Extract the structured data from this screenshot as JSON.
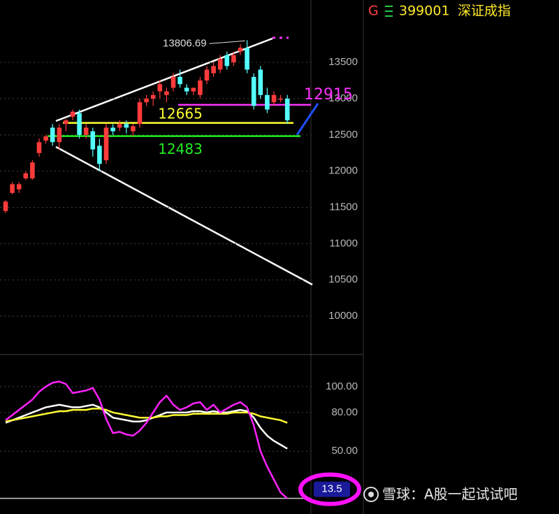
{
  "header": {
    "marker": "G",
    "code": "399001",
    "name": "深证成指"
  },
  "watermark": "雪球：A股一起试试吧",
  "chart_data": [
    {
      "type": "candlestick",
      "up_color": "#ff3b3b",
      "down_color": "#54ffff",
      "ylim": [
        9490,
        14360
      ],
      "yticks": [
        10000,
        10500,
        11000,
        11500,
        12000,
        12500,
        13000,
        13500
      ],
      "grid": true,
      "open": [
        11450,
        11700,
        11750,
        11900,
        11900,
        12250,
        12420,
        12600,
        12400,
        12650,
        12750,
        12800,
        12500,
        12550,
        12350,
        12150,
        12600,
        12600,
        12650,
        12550,
        12650,
        12950,
        13000,
        13100,
        13050,
        13150,
        13300,
        13150,
        13100,
        13050,
        13250,
        13350,
        13400,
        13600,
        13500,
        13650,
        13700,
        13300,
        13400,
        13050,
        12950,
        13000,
        13000
      ],
      "high": [
        11600,
        11850,
        11850,
        12000,
        12150,
        12450,
        12500,
        12650,
        12650,
        12720,
        12850,
        12850,
        12650,
        12600,
        12450,
        12650,
        12650,
        12700,
        12700,
        12650,
        13000,
        13050,
        13100,
        13250,
        13150,
        13350,
        13400,
        13200,
        13150,
        13300,
        13450,
        13500,
        13600,
        13650,
        13650,
        13750,
        13806.69,
        13350,
        13450,
        13150,
        13100,
        13050,
        13050
      ],
      "low": [
        11420,
        11680,
        11700,
        11880,
        11880,
        12200,
        12380,
        12350,
        12300,
        12550,
        12700,
        12450,
        12450,
        12200,
        12000,
        12100,
        12500,
        12550,
        12520,
        12480,
        12600,
        12900,
        12900,
        13000,
        12950,
        13100,
        13150,
        13050,
        13050,
        13000,
        13200,
        13300,
        13350,
        13400,
        13450,
        13600,
        13350,
        12850,
        13000,
        12800,
        12900,
        12950,
        12650
      ],
      "close": [
        11580,
        11820,
        11820,
        11970,
        12120,
        12400,
        12480,
        12400,
        12600,
        12700,
        12820,
        12500,
        12600,
        12300,
        12100,
        12600,
        12550,
        12650,
        12600,
        12620,
        12950,
        13000,
        13050,
        13200,
        13100,
        13300,
        13200,
        13100,
        13150,
        13250,
        13400,
        13450,
        13550,
        13450,
        13600,
        13700,
        13400,
        12900,
        13050,
        12850,
        13050,
        13000,
        12700
      ],
      "levels": [
        {
          "value": 12915,
          "color": "#ff33ff"
        },
        {
          "value": 12665,
          "color": "#ffff33"
        },
        {
          "value": 12483,
          "color": "#22ee22"
        }
      ]
    },
    {
      "type": "line",
      "ylim": [
        1.4,
        124.3
      ],
      "yticks": [
        {
          "value": 100,
          "label": "100.00"
        },
        {
          "value": 80,
          "label": "80.00"
        },
        {
          "value": 50,
          "label": "50.00"
        }
      ],
      "grid": true,
      "current_value": 13.5,
      "series": [
        {
          "color": "#ffffff",
          "values": [
            72,
            74,
            76,
            78,
            80,
            82,
            84,
            85,
            86,
            85,
            84,
            84,
            85,
            86,
            84,
            80,
            76,
            75,
            74,
            73,
            73,
            74,
            76,
            78,
            80,
            80,
            80,
            80,
            81,
            81,
            80,
            81,
            80,
            80,
            81,
            82,
            81,
            76,
            68,
            62,
            58,
            55,
            52
          ]
        },
        {
          "color": "#ffff33",
          "values": [
            73,
            74,
            75,
            76,
            77,
            78,
            79,
            80,
            81,
            81,
            82,
            82,
            82,
            83,
            83,
            82,
            80,
            79,
            78,
            77,
            76,
            76,
            76,
            77,
            77,
            78,
            78,
            78,
            79,
            79,
            79,
            79,
            79,
            79,
            80,
            80,
            80,
            79,
            77,
            76,
            75,
            74,
            72
          ]
        },
        {
          "color": "#ff22ff",
          "values": [
            74,
            78,
            82,
            86,
            90,
            96,
            100,
            103,
            104,
            102,
            95,
            96,
            97,
            99,
            90,
            75,
            64,
            65,
            63,
            62,
            66,
            72,
            80,
            88,
            93,
            86,
            82,
            84,
            87,
            88,
            82,
            86,
            80,
            83,
            86,
            88,
            84,
            70,
            50,
            38,
            28,
            18,
            13.5
          ]
        }
      ]
    }
  ]
}
